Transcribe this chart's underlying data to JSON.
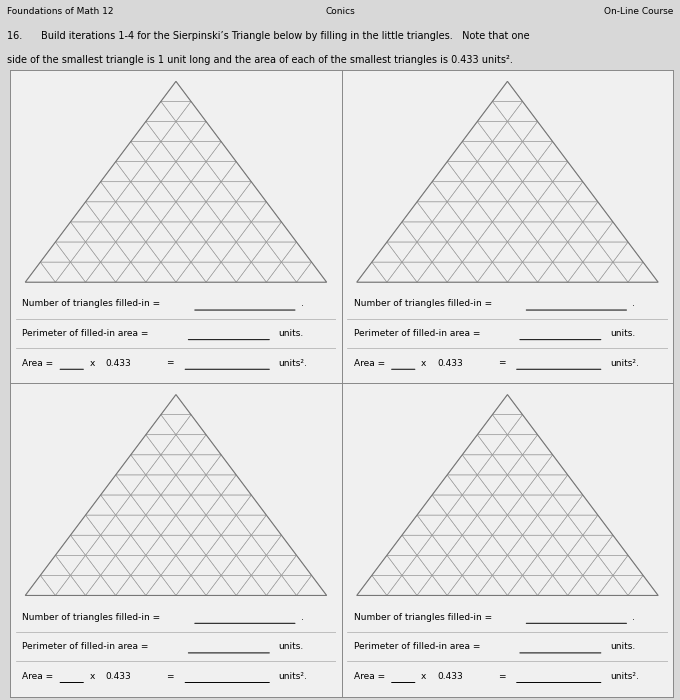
{
  "title_line1": "16.      Build iterations 1-4 for the Sierpinski’s Triangle below by filling in the little triangles.   Note that one",
  "title_line2": "side of the smallest triangle is 1 unit long and the area of each of the smallest triangles is 0.433 units².",
  "header_left": "Foundations of Math 12",
  "header_center": "Conics",
  "header_right": "On-Line Course",
  "label_num": "Number of triangles filled-in =",
  "label_perim": "Perimeter of filled-in area =",
  "label_area_prefix": "Area =",
  "label_x": "x",
  "label_0433": "0.433",
  "label_eq": "=",
  "label_units": "units.",
  "label_units2": "units².",
  "bg_color": "#d8d8d8",
  "cell_bg": "#f0f0f0",
  "triangle_line_color": "#999999",
  "outer_line_color": "#777777",
  "border_color": "#aaaaaa",
  "font_size_header": 6.5,
  "font_size_title": 7.0,
  "font_size_label": 6.5,
  "n_subdivisions": 10
}
